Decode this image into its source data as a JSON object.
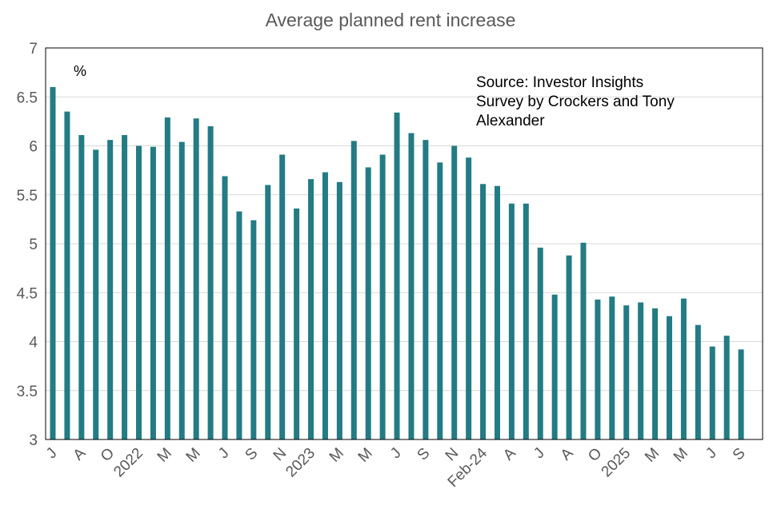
{
  "chart_data": {
    "type": "bar",
    "title": "Average planned rent increase",
    "y_unit_label": "%",
    "annotation": [
      "Source: Investor Insights",
      "Survey by Crockers and Tony",
      "Alexander"
    ],
    "categories": [
      "J",
      null,
      "A",
      null,
      "O",
      null,
      "2022",
      null,
      "M",
      null,
      "M",
      null,
      "J",
      null,
      "S",
      null,
      "N",
      null,
      "2023",
      null,
      "M",
      null,
      "M",
      null,
      "J",
      null,
      "S",
      null,
      "N",
      null,
      "Feb-24",
      null,
      "A",
      null,
      "J",
      null,
      "A",
      null,
      "O",
      null,
      "2025",
      null,
      "M",
      null,
      "M",
      null,
      "J",
      null,
      "S"
    ],
    "values": [
      6.6,
      6.35,
      6.11,
      5.96,
      6.06,
      6.11,
      6.0,
      5.99,
      6.29,
      6.04,
      6.28,
      6.2,
      5.69,
      5.33,
      5.24,
      5.6,
      5.91,
      5.36,
      5.66,
      5.73,
      5.63,
      6.05,
      5.78,
      5.91,
      6.34,
      6.13,
      6.06,
      5.83,
      6.0,
      5.88,
      5.61,
      5.59,
      5.41,
      5.41,
      4.96,
      4.48,
      4.88,
      5.01,
      4.43,
      4.46,
      4.37,
      4.4,
      4.34,
      4.26,
      4.44,
      4.17,
      3.95,
      4.06,
      3.92
    ],
    "color": "#237b84",
    "ylim": [
      3,
      7
    ],
    "yticks": [
      3,
      3.5,
      4,
      4.5,
      5,
      5.5,
      6,
      6.5,
      7
    ],
    "grid": true
  }
}
